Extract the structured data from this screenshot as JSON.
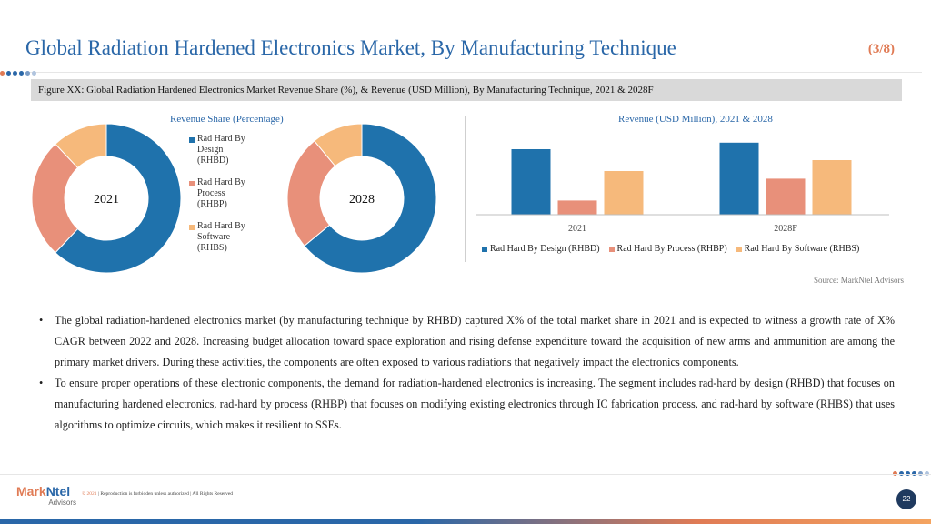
{
  "header": {
    "title": "Global Radiation Hardened Electronics Market, By Manufacturing Technique",
    "page_count": "(3/8)"
  },
  "figure_caption": "Figure XX: Global Radiation Hardened Electronics Market Revenue Share (%),  & Revenue (USD Million), By Manufacturing Technique, 2021 & 2028F",
  "colors": {
    "rhbd": "#1f72ac",
    "rhbp": "#e8907a",
    "rhbs": "#f6b97b",
    "title_blue": "#2a67a8",
    "accent_orange": "#e07b55"
  },
  "chart_data": [
    {
      "type": "pie",
      "title": "Revenue Share (Percentage)",
      "charts": [
        {
          "center_label": "2021",
          "slices": [
            {
              "name": "Rad Hard By Design (RHBD)",
              "value": 62
            },
            {
              "name": "Rad Hard By Process (RHBP)",
              "value": 26
            },
            {
              "name": "Rad Hard By Software (RHBS)",
              "value": 12
            }
          ]
        },
        {
          "center_label": "2028",
          "slices": [
            {
              "name": "Rad Hard By Design (RHBD)",
              "value": 64
            },
            {
              "name": "Rad Hard By Process (RHBP)",
              "value": 25
            },
            {
              "name": "Rad Hard By Software (RHBS)",
              "value": 11
            }
          ]
        }
      ],
      "legend": [
        {
          "label": "Rad Hard By Design (RHBD)",
          "color_key": "rhbd"
        },
        {
          "label": "Rad Hard By Process (RHBP)",
          "color_key": "rhbp"
        },
        {
          "label": "Rad Hard By Software (RHBS)",
          "color_key": "rhbs"
        }
      ],
      "legend_position": "right"
    },
    {
      "type": "bar",
      "title": "Revenue (USD Million), 2021 & 2028",
      "categories": [
        "2021",
        "2028F"
      ],
      "series": [
        {
          "name": "Rad Hard By Design (RHBD)",
          "color_key": "rhbd",
          "values": [
            60,
            66
          ]
        },
        {
          "name": "Rad Hard By Process (RHBP)",
          "color_key": "rhbp",
          "values": [
            13,
            33
          ]
        },
        {
          "name": "Rad Hard By Software (RHBS)",
          "color_key": "rhbs",
          "values": [
            40,
            50
          ]
        }
      ],
      "ylim": [
        0,
        70
      ],
      "grid": false,
      "legend_position": "bottom"
    }
  ],
  "source": "Source: MarkNtel Advisors",
  "bullets": [
    "The global radiation-hardened electronics market (by manufacturing technique by RHBD) captured X% of the total market share in 2021 and is expected to witness a growth rate of X% CAGR between 2022 and 2028. Increasing budget allocation toward space exploration and rising defense expenditure toward the acquisition of new arms and ammunition are among the primary market drivers. During these activities, the components are often exposed to various radiations that negatively impact the electronics components.",
    "To ensure proper operations of these electronic components, the demand for radiation-hardened electronics is increasing. The segment includes rad-hard by design (RHBD) that focuses on manufacturing hardened electronics, rad-hard by process (RHBP) that focuses on modifying existing electronics through IC fabrication process, and rad-hard by software (RHBS) that uses algorithms to optimize circuits, which makes it resilient to SSEs."
  ],
  "footer": {
    "logo_part1": "Mark",
    "logo_part2": "Ntel",
    "logo_sub": "Advisors",
    "copyright_year": "© 2021",
    "copyright_text": " | Reproduction is forbidden unless authorized | All Rights Reserved",
    "page_number": "22"
  }
}
